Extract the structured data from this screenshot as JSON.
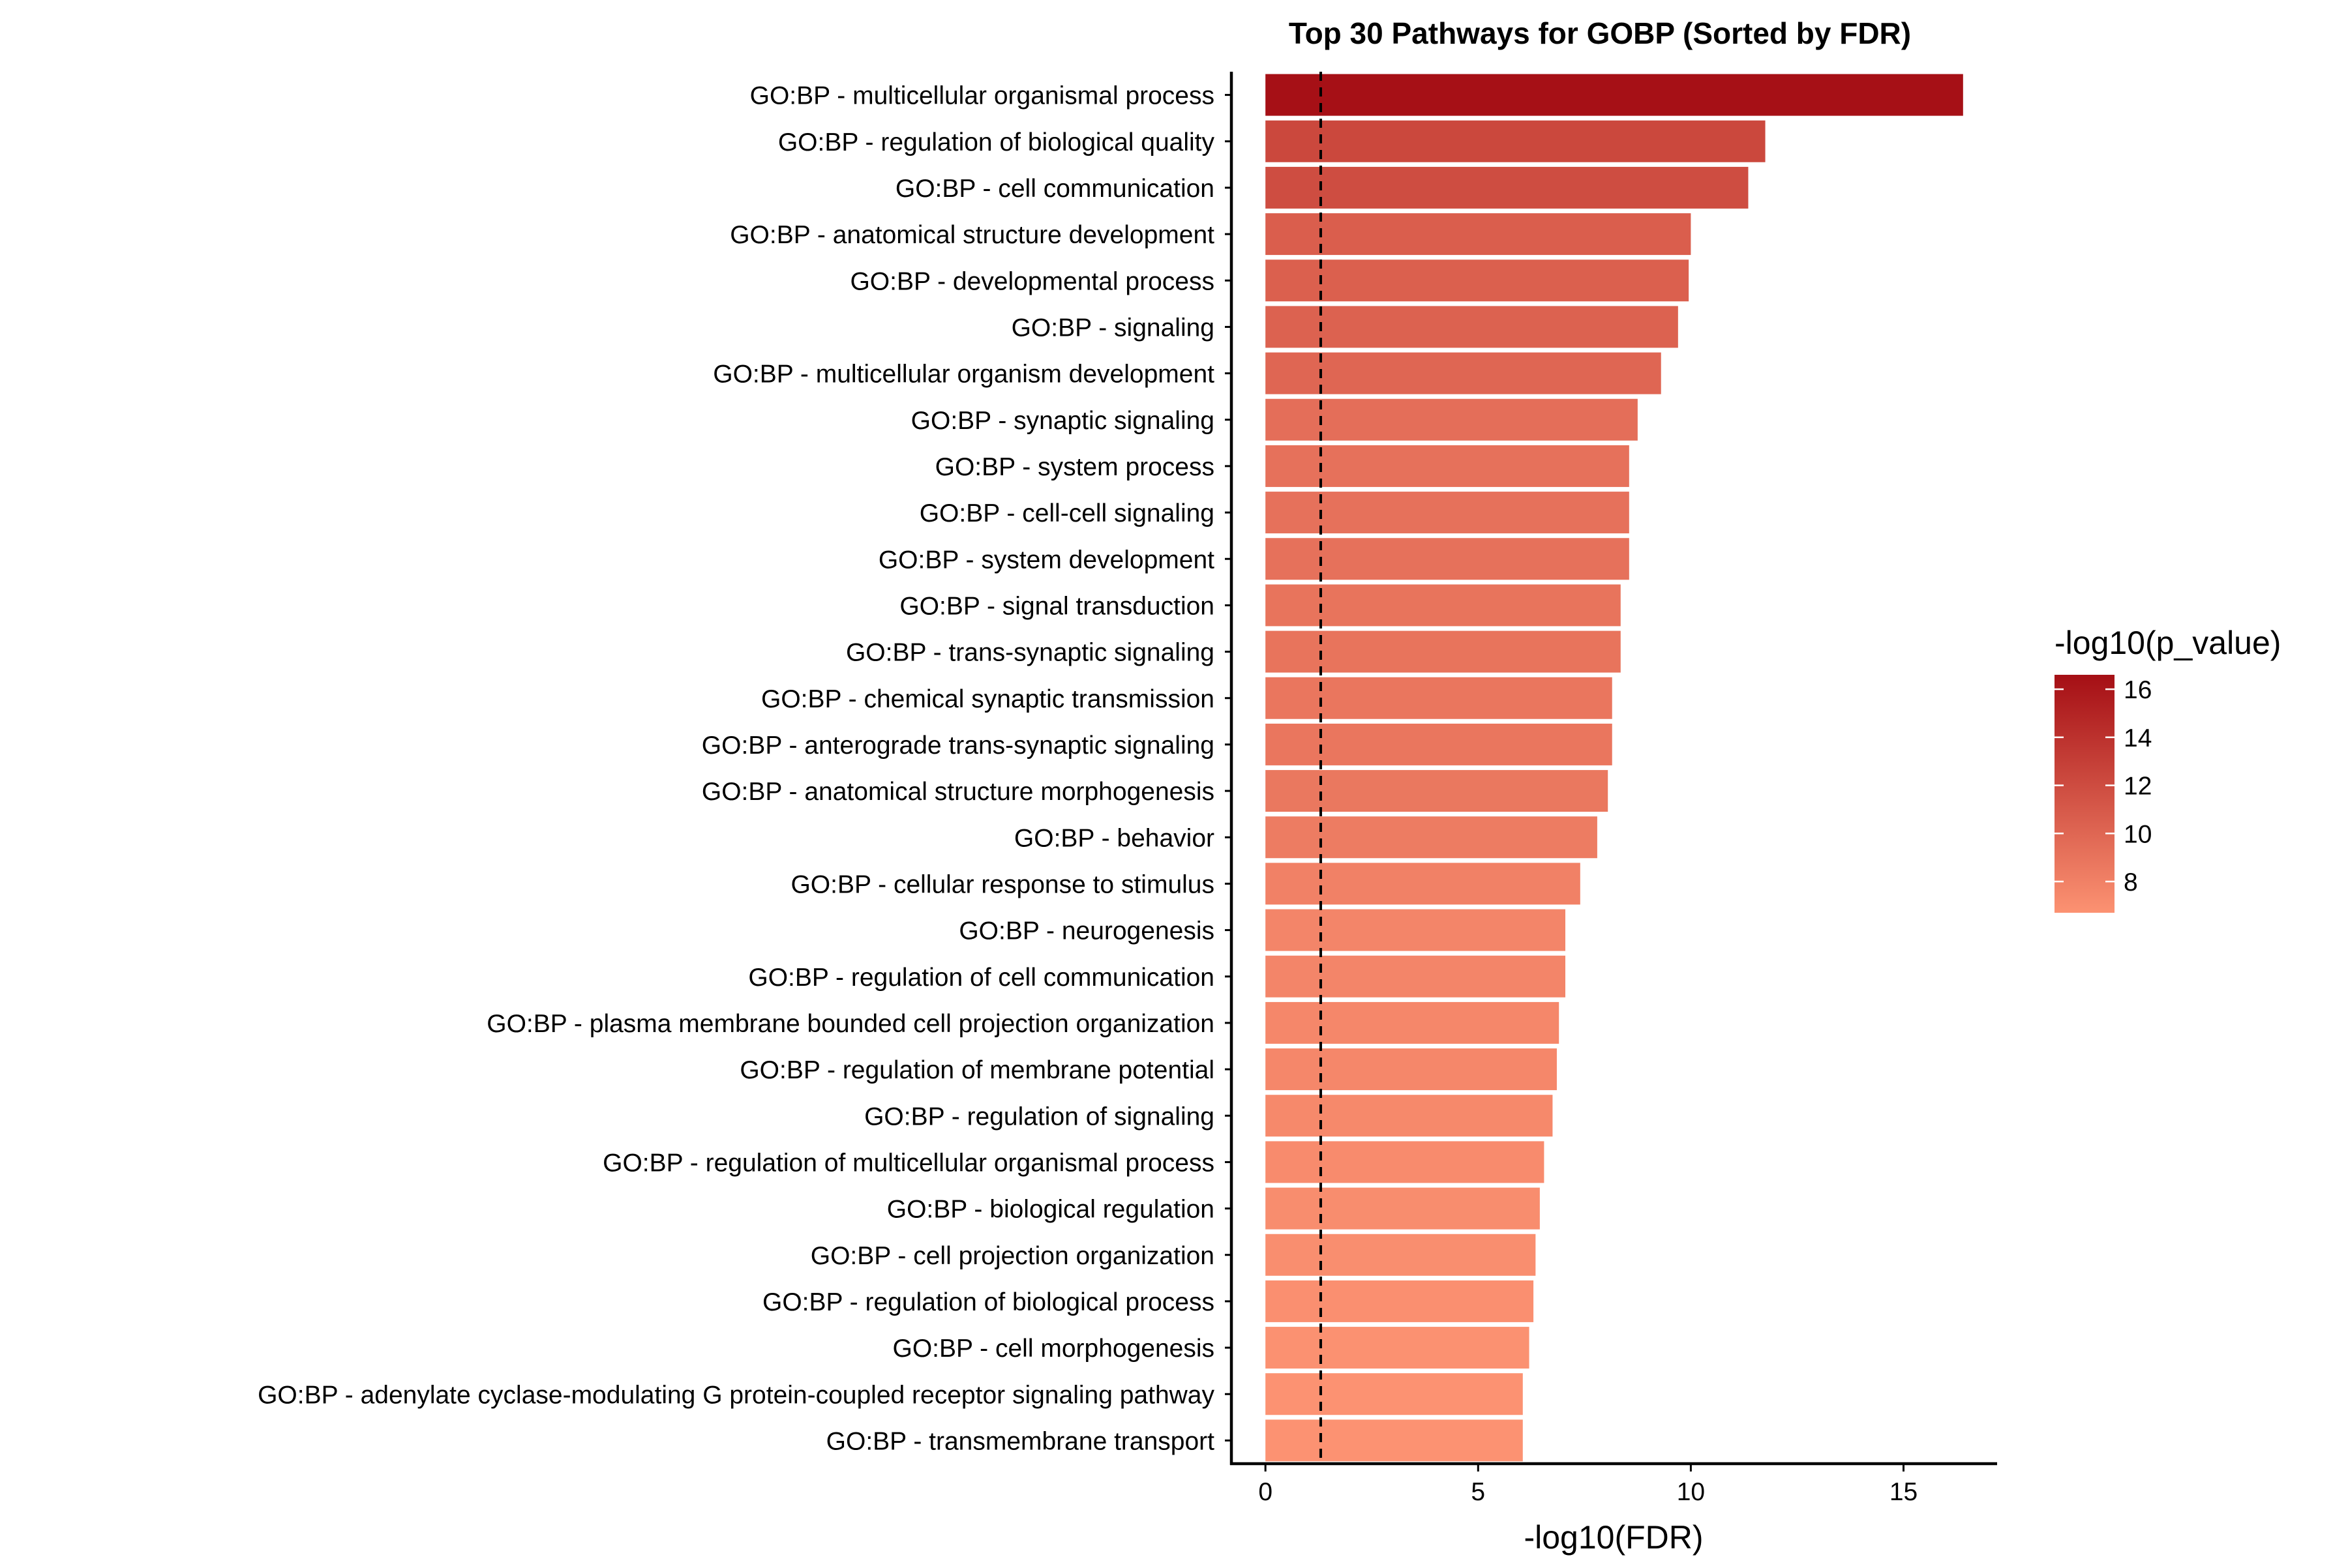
{
  "chart_data": {
    "type": "bar",
    "orientation": "horizontal",
    "title": "Top 30 Pathways for GOBP (Sorted by FDR)",
    "xlabel": "-log10(FDR)",
    "ylabel": "",
    "xlim": [
      -0.8,
      17.2
    ],
    "xticks": [
      0,
      5,
      10,
      15
    ],
    "reference_line": {
      "x": 1.3,
      "style": "dashed"
    },
    "grid": false,
    "categories": [
      "GO:BP - multicellular organismal process",
      "GO:BP - regulation of biological quality",
      "GO:BP - cell communication",
      "GO:BP - anatomical structure development",
      "GO:BP - developmental process",
      "GO:BP - signaling",
      "GO:BP - multicellular organism development",
      "GO:BP - synaptic signaling",
      "GO:BP - system process",
      "GO:BP - cell-cell signaling",
      "GO:BP - system development",
      "GO:BP - signal transduction",
      "GO:BP - trans-synaptic signaling",
      "GO:BP - chemical synaptic transmission",
      "GO:BP - anterograde trans-synaptic signaling",
      "GO:BP - anatomical structure morphogenesis",
      "GO:BP - behavior",
      "GO:BP - cellular response to stimulus",
      "GO:BP - neurogenesis",
      "GO:BP - regulation of cell communication",
      "GO:BP - plasma membrane bounded cell projection organization",
      "GO:BP - regulation of membrane potential",
      "GO:BP - regulation of signaling",
      "GO:BP - regulation of multicellular organismal process",
      "GO:BP - biological regulation",
      "GO:BP - cell projection organization",
      "GO:BP - regulation of biological process",
      "GO:BP - cell morphogenesis",
      "GO:BP - adenylate cyclase-modulating G protein-coupled receptor signaling pathway",
      "GO:BP - transmembrane transport"
    ],
    "values": [
      16.4,
      11.75,
      11.35,
      10.0,
      9.95,
      9.7,
      9.3,
      8.75,
      8.55,
      8.55,
      8.55,
      8.35,
      8.35,
      8.15,
      8.15,
      8.05,
      7.8,
      7.4,
      7.05,
      7.05,
      6.9,
      6.85,
      6.75,
      6.55,
      6.45,
      6.35,
      6.3,
      6.2,
      6.05,
      6.05
    ],
    "color_values": [
      16.5,
      12.3,
      11.9,
      10.6,
      10.5,
      10.3,
      10.0,
      9.4,
      9.2,
      9.2,
      9.2,
      9.0,
      9.0,
      8.8,
      8.8,
      8.7,
      8.4,
      8.0,
      7.7,
      7.7,
      7.5,
      7.5,
      7.4,
      7.2,
      7.1,
      7.0,
      6.9,
      6.8,
      6.7,
      6.7
    ],
    "legend": {
      "title": "-log10(p_value)",
      "position": "right",
      "ticks": [
        8,
        10,
        12,
        14,
        16
      ],
      "range": [
        6.7,
        16.6
      ],
      "color_low": "#FC9272",
      "color_high": "#A50F15"
    }
  }
}
